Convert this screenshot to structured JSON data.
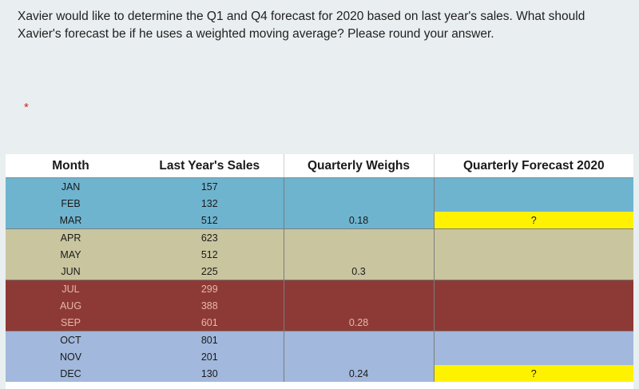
{
  "question": {
    "text": "Xavier would like to determine the Q1 and Q4 forecast for 2020 based on last year's sales. What should Xavier's forecast be if he uses a weighted moving average? Please round your answer.",
    "required_marker": "*"
  },
  "table": {
    "headers": {
      "month": "Month",
      "sales": "Last Year's Sales",
      "weights": "Quarterly Weighs",
      "forecast": "Quarterly Forecast 2020"
    },
    "rows": [
      {
        "month": "JAN",
        "sales": "157",
        "weight": "",
        "forecast": ""
      },
      {
        "month": "FEB",
        "sales": "132",
        "weight": "",
        "forecast": ""
      },
      {
        "month": "MAR",
        "sales": "512",
        "weight": "0.18",
        "forecast": "?"
      },
      {
        "month": "APR",
        "sales": "623",
        "weight": "",
        "forecast": ""
      },
      {
        "month": "MAY",
        "sales": "512",
        "weight": "",
        "forecast": ""
      },
      {
        "month": "JUN",
        "sales": "225",
        "weight": "0.3",
        "forecast": ""
      },
      {
        "month": "JUL",
        "sales": "299",
        "weight": "",
        "forecast": ""
      },
      {
        "month": "AUG",
        "sales": "388",
        "weight": "",
        "forecast": ""
      },
      {
        "month": "SEP",
        "sales": "601",
        "weight": "0.28",
        "forecast": ""
      },
      {
        "month": "OCT",
        "sales": "801",
        "weight": "",
        "forecast": ""
      },
      {
        "month": "NOV",
        "sales": "201",
        "weight": "",
        "forecast": ""
      },
      {
        "month": "DEC",
        "sales": "130",
        "weight": "0.24",
        "forecast": "?"
      }
    ]
  },
  "colors": {
    "q1": "#6fb4cf",
    "q2": "#c9c59f",
    "q3": "#8d3a36",
    "q4": "#a2b8dc",
    "highlight": "#fff200",
    "required_star": "#d0281f"
  }
}
